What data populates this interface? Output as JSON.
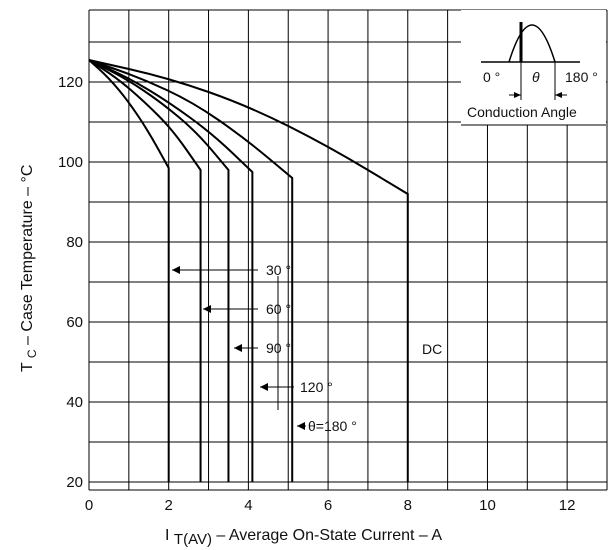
{
  "chart_data": {
    "type": "line",
    "title": "",
    "xlabel": "I",
    "xlabel_sub": "T(AV)",
    "xlabel_rest": "Average On-State Current",
    "xlabel_unit": "A",
    "ylabel": "T",
    "ylabel_sub": "C",
    "ylabel_rest": "Case Temperature",
    "ylabel_unit": "°C",
    "xlim": [
      0,
      13
    ],
    "ylim": [
      18,
      138
    ],
    "x_ticks": [
      0,
      2,
      4,
      6,
      8,
      10,
      12
    ],
    "y_ticks": [
      20,
      40,
      60,
      80,
      100,
      120
    ],
    "grid": true,
    "series": [
      {
        "name": "30 °",
        "x": [
          0,
          0.5,
          1.0,
          1.5,
          2.0,
          2.0
        ],
        "y": [
          125.5,
          121,
          115,
          107.5,
          98.5,
          20
        ]
      },
      {
        "name": "60 °",
        "x": [
          0,
          0.7,
          1.4,
          2.1,
          2.8,
          2.8
        ],
        "y": [
          125.5,
          121,
          115,
          108,
          98,
          20
        ]
      },
      {
        "name": "90 °",
        "x": [
          0,
          0.9,
          1.8,
          2.7,
          3.5,
          3.5
        ],
        "y": [
          125.5,
          121,
          115,
          107.5,
          98,
          20
        ]
      },
      {
        "name": "120 °",
        "x": [
          0,
          1.0,
          2.0,
          3.1,
          4.1,
          4.1
        ],
        "y": [
          125.5,
          121,
          115,
          107,
          97.5,
          20
        ]
      },
      {
        "name": "θ=180 °",
        "x": [
          0,
          1.3,
          2.6,
          3.9,
          5.1,
          5.1
        ],
        "y": [
          125.5,
          121,
          115,
          106,
          96,
          20
        ]
      },
      {
        "name": "DC",
        "x": [
          0,
          2,
          4,
          6,
          8,
          8
        ],
        "y": [
          125.5,
          121,
          114,
          104,
          92,
          20
        ]
      }
    ],
    "annotations": {
      "labels": [
        "30 °",
        "60 °",
        "90 °",
        "120 °",
        "θ=180 °",
        "DC"
      ],
      "inset": {
        "left": "0 °",
        "middle": "θ",
        "right": "180 °",
        "caption": "Conduction Angle"
      }
    }
  },
  "colors": {
    "ink": "#000000",
    "background": "#ffffff"
  }
}
